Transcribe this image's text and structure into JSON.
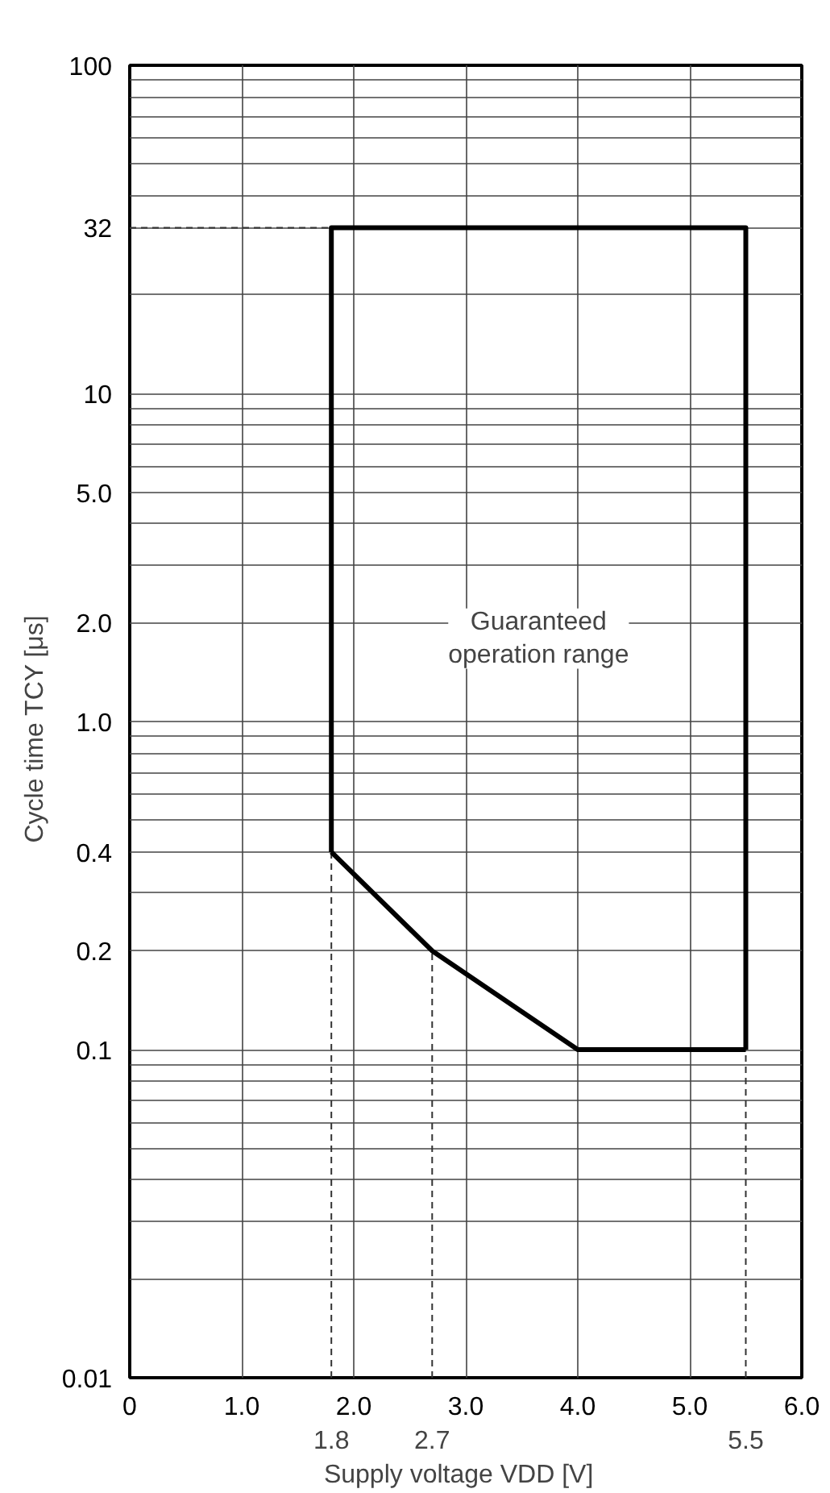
{
  "chart_data": {
    "type": "line",
    "xlabel": "Supply voltage  VDD  [V]",
    "ylabel": "Cycle time  TCY  [μs]",
    "xlim": [
      0,
      6
    ],
    "ylim": [
      0.01,
      100
    ],
    "log": "y",
    "grid": true,
    "marker": "none",
    "line_style": "solid",
    "xticks": [
      0,
      {
        "value": 1,
        "label": "1.0"
      },
      {
        "value": 2,
        "label": "2.0"
      },
      {
        "value": 3,
        "label": "3.0"
      },
      {
        "value": 4,
        "label": "4.0"
      },
      {
        "value": 5,
        "label": "5.0"
      },
      {
        "value": 6,
        "label": "6.0"
      }
    ],
    "yticks": [
      0.01,
      {
        "value": 0.02,
        "label": null
      },
      {
        "value": 0.03,
        "label": null
      },
      {
        "value": 0.04,
        "label": null
      },
      {
        "value": 0.05,
        "label": null
      },
      {
        "value": 0.06,
        "label": null
      },
      {
        "value": 0.07,
        "label": null
      },
      {
        "value": 0.08,
        "label": null
      },
      {
        "value": 0.09,
        "label": null
      },
      0.1,
      0.2,
      {
        "value": 0.3,
        "label": null
      },
      0.4,
      {
        "value": 0.5,
        "label": null
      },
      {
        "value": 0.6,
        "label": null
      },
      {
        "value": 0.7,
        "label": null
      },
      {
        "value": 0.8,
        "label": null
      },
      {
        "value": 0.9,
        "label": null
      },
      {
        "value": 1,
        "label": "1.0"
      },
      {
        "value": 2,
        "label": "2.0"
      },
      {
        "value": 3,
        "label": null
      },
      {
        "value": 4,
        "label": null
      },
      {
        "value": 5,
        "label": "5.0"
      },
      {
        "value": 6,
        "label": null
      },
      {
        "value": 7,
        "label": null
      },
      {
        "value": 8,
        "label": null
      },
      {
        "value": 9,
        "label": null
      },
      10,
      {
        "value": 20,
        "label": null
      },
      32,
      {
        "value": 40,
        "label": null
      },
      {
        "value": 50,
        "label": null
      },
      {
        "value": 60,
        "label": null
      },
      {
        "value": 70,
        "label": null
      },
      {
        "value": 80,
        "label": null
      },
      {
        "value": 90,
        "label": null
      },
      100
    ],
    "series": [
      {
        "color": "#000000",
        "x": [
          1.8,
          1.8,
          5.5,
          5.5
        ],
        "values": [
          0.4,
          32,
          32,
          0.1
        ]
      },
      {
        "color": "#000000",
        "x": [
          1.8,
          2.7,
          4.0,
          5.5
        ],
        "values": [
          0.4,
          0.2,
          0.1,
          0.1
        ]
      }
    ],
    "ref_lines": [
      {
        "axis": "x",
        "value": 1.8,
        "label": "1.8",
        "line_style": "dashed"
      },
      {
        "axis": "x",
        "value": 2.7,
        "label": "2.7",
        "line_style": "dashed"
      },
      {
        "axis": "x",
        "value": 5.5,
        "label": "5.5",
        "line_style": "dashed"
      },
      {
        "axis": "y",
        "value": 32,
        "line_style": "dashed"
      }
    ],
    "annotations": [
      "Guaranteed\noperation range"
    ]
  }
}
